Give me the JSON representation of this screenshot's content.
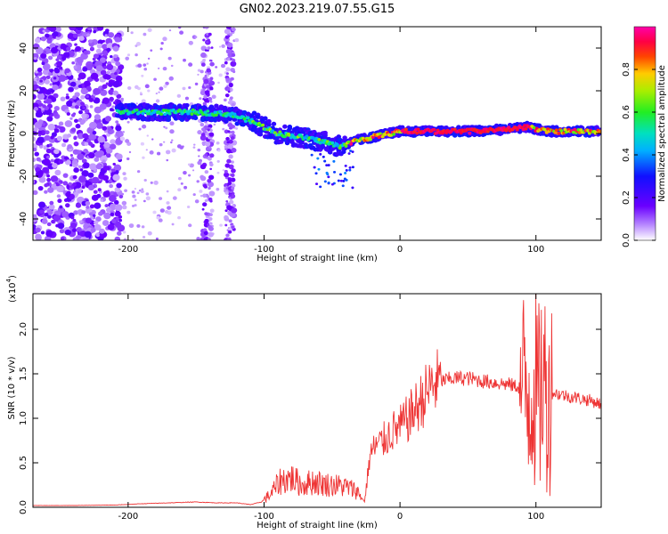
{
  "title": "GN02.2023.219.07.55.G15",
  "colors": {
    "axes": "#000000",
    "snr_line": "#ee3333",
    "background": "#ffffff"
  },
  "colorbar": {
    "label": "Normalized spectral amplitude",
    "ticks": [
      "0.0",
      "0.2",
      "0.4",
      "0.6",
      "0.8"
    ],
    "tick_values": [
      0.0,
      0.2,
      0.4,
      0.6,
      0.8
    ],
    "range": [
      0,
      1
    ],
    "colormap": "rainbow (white-purple-blue-cyan-green-yellow-red-magenta)"
  },
  "chart_data": [
    {
      "type": "heatmap",
      "name": "spectrogram",
      "xlabel": "Height of straight line (km)",
      "ylabel": "Frequency (Hz)",
      "xlim": [
        -270,
        148
      ],
      "ylim": [
        -50,
        50
      ],
      "x_ticks": [
        "-200",
        "-100",
        "0",
        "100"
      ],
      "x_tick_values": [
        -200,
        -100,
        0,
        100
      ],
      "y_ticks": [
        "-40",
        "-20",
        "0",
        "20",
        "40"
      ],
      "y_tick_values": [
        -40,
        -20,
        0,
        20,
        40
      ],
      "dominant_ridge": {
        "x": [
          -205,
          -180,
          -150,
          -125,
          -110,
          -90,
          -70,
          -55,
          -45,
          -30,
          -15,
          0,
          20,
          50,
          80,
          95,
          100,
          110,
          148
        ],
        "y": [
          10,
          10,
          10,
          9,
          6,
          0,
          -2,
          -4,
          -6,
          -3,
          -1,
          1,
          1,
          1,
          2,
          3,
          2,
          1,
          1
        ]
      },
      "noise_region": {
        "x": [
          -270,
          -205
        ],
        "description_value": "scattered"
      }
    },
    {
      "type": "line",
      "name": "snr",
      "xlabel": "Height of straight line (km)",
      "ylabel": "SNR (10 * v/v)",
      "y_scale_label": "(x10",
      "y_scale_exponent": "4",
      "xlim": [
        -270,
        148
      ],
      "ylim": [
        0,
        24000
      ],
      "x_ticks": [
        "-200",
        "-100",
        "0",
        "100"
      ],
      "x_tick_values": [
        -200,
        -100,
        0,
        100
      ],
      "y_ticks": [
        "0.0",
        "0.5",
        "1.0",
        "1.5",
        "2.0"
      ],
      "y_tick_values": [
        0,
        5000,
        10000,
        15000,
        20000
      ],
      "series": [
        {
          "x": [
            -270,
            -250,
            -230,
            -210,
            -190,
            -170,
            -150,
            -135,
            -120,
            -110,
            -102,
            -95,
            -88,
            -80,
            -72,
            -64,
            -56,
            -48,
            -40,
            -32,
            -26,
            -22,
            -18,
            -12,
            -6,
            0,
            6,
            12,
            18,
            24,
            30,
            40,
            50,
            60,
            70,
            80,
            88,
            94,
            98,
            102,
            105,
            108,
            112,
            120,
            130,
            140,
            148
          ],
          "y": [
            200,
            200,
            220,
            250,
            400,
            500,
            600,
            500,
            500,
            300,
            600,
            1500,
            3000,
            3300,
            2500,
            2900,
            2600,
            2500,
            2300,
            1900,
            600,
            6000,
            6800,
            7500,
            8500,
            9000,
            10000,
            11200,
            12500,
            13800,
            14200,
            14500,
            14500,
            14200,
            14000,
            13800,
            13500,
            13000,
            14000,
            12000,
            15000,
            12000,
            12900,
            12600,
            12300,
            12000,
            11600
          ]
        }
      ]
    }
  ]
}
